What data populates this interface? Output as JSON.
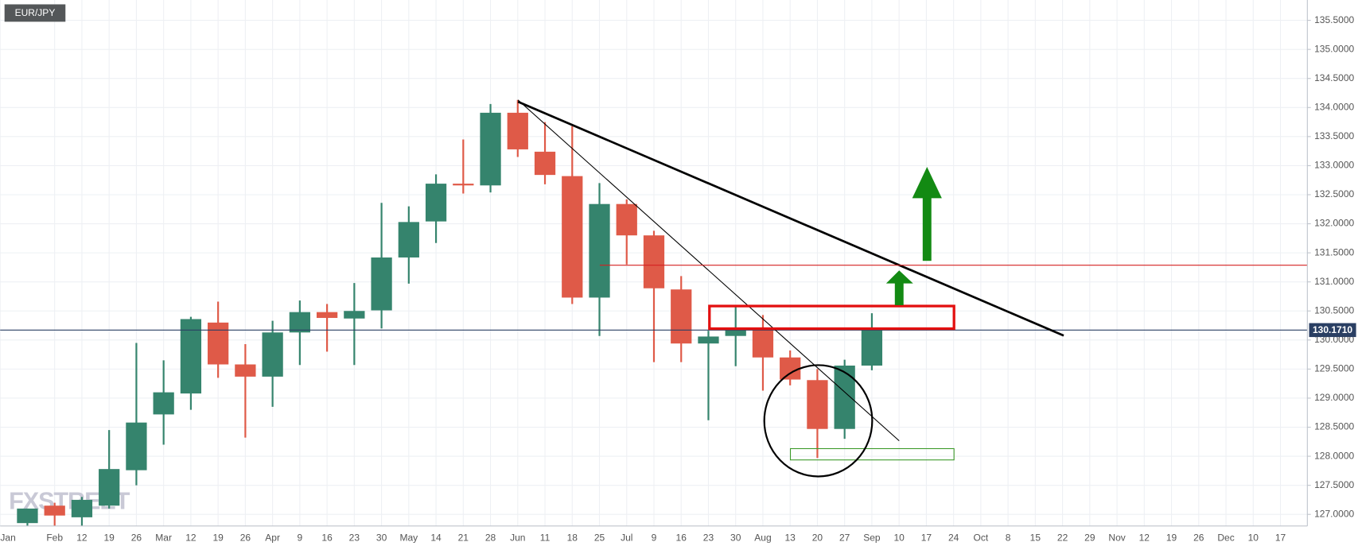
{
  "chart_data": {
    "type": "candlestick",
    "title": "EUR/JPY",
    "watermark": "FXSTREET",
    "categories": [
      "Jan",
      null,
      "Feb",
      "12",
      "19",
      "26",
      "Mar",
      "12",
      "19",
      "26",
      "Apr",
      "9",
      "16",
      "23",
      "30",
      "May",
      "14",
      "21",
      "28",
      "Jun",
      "11",
      "18",
      "25",
      "Jul",
      "9",
      "16",
      "23",
      "30",
      "Aug",
      "13",
      "20",
      "27",
      "Sep",
      "10",
      "17",
      "24",
      "Oct",
      "8",
      "15",
      "22",
      "29",
      "Nov",
      "12",
      "19",
      "26",
      "Dec",
      "10",
      "17"
    ],
    "series": [
      {
        "up_color": "#35846d",
        "down_color": "#df5a48",
        "open": [
          null,
          126.85,
          127.15,
          126.95,
          127.15,
          127.76,
          128.72,
          129.08,
          130.3,
          129.58,
          129.37,
          130.13,
          130.48,
          130.37,
          130.51,
          131.42,
          132.04,
          132.69,
          132.66,
          133.91,
          133.24,
          132.82,
          130.73,
          132.34,
          131.8,
          130.87,
          129.94,
          130.07,
          130.18,
          129.7,
          129.31,
          128.47,
          129.56,
          null,
          null,
          null,
          null,
          null,
          null,
          null,
          null,
          null,
          null,
          null,
          null,
          null,
          null,
          null
        ],
        "high": [
          null,
          127.1,
          127.2,
          127.3,
          128.45,
          129.95,
          129.65,
          130.4,
          130.66,
          129.93,
          130.33,
          130.68,
          130.62,
          130.98,
          132.36,
          132.3,
          132.85,
          133.45,
          134.06,
          134.13,
          133.75,
          133.68,
          132.7,
          132.42,
          131.88,
          131.1,
          130.16,
          130.57,
          130.43,
          129.82,
          129.5,
          129.66,
          130.46,
          null,
          null,
          null,
          null,
          null,
          null,
          null,
          null,
          null,
          null,
          null,
          null,
          null,
          null,
          null
        ],
        "low": [
          null,
          126.8,
          126.8,
          126.8,
          127.1,
          127.5,
          128.2,
          128.8,
          129.35,
          128.32,
          128.85,
          129.57,
          129.8,
          129.57,
          130.2,
          130.97,
          131.67,
          132.52,
          132.54,
          133.15,
          132.68,
          130.62,
          130.07,
          131.3,
          129.62,
          129.62,
          128.62,
          129.55,
          129.13,
          129.22,
          127.97,
          128.3,
          129.48,
          null,
          null,
          null,
          null,
          null,
          null,
          null,
          null,
          null,
          null,
          null,
          null,
          null,
          null,
          null
        ],
        "close": [
          null,
          127.1,
          126.98,
          127.25,
          127.78,
          128.58,
          129.1,
          130.36,
          129.58,
          129.37,
          130.13,
          130.48,
          130.38,
          130.5,
          131.42,
          132.03,
          132.69,
          132.66,
          133.91,
          133.28,
          132.84,
          130.73,
          132.34,
          131.8,
          130.89,
          129.94,
          130.06,
          130.18,
          129.7,
          129.32,
          128.47,
          129.56,
          130.17,
          null,
          null,
          null,
          null,
          null,
          null,
          null,
          null,
          null,
          null,
          null,
          null,
          null,
          null,
          null
        ]
      }
    ],
    "last_price": {
      "value": 130.171,
      "label": "130.1710"
    },
    "last_price_color": "#2a3f63",
    "ylim": [
      126.8,
      135.85
    ],
    "yticks": [
      {
        "value": 127,
        "label": "127.0000"
      },
      {
        "value": 127.5,
        "label": "127.5000"
      },
      {
        "value": 128,
        "label": "128.0000"
      },
      {
        "value": 128.5,
        "label": "128.5000"
      },
      {
        "value": 129,
        "label": "129.0000"
      },
      {
        "value": 129.5,
        "label": "129.5000"
      },
      {
        "value": 130,
        "label": "130.0000"
      },
      {
        "value": 130.5,
        "label": "130.5000"
      },
      {
        "value": 131,
        "label": "131.0000"
      },
      {
        "value": 131.5,
        "label": "131.5000"
      },
      {
        "value": 132,
        "label": "132.0000"
      },
      {
        "value": 132.5,
        "label": "132.5000"
      },
      {
        "value": 133,
        "label": "133.0000"
      },
      {
        "value": 133.5,
        "label": "133.5000"
      },
      {
        "value": 134,
        "label": "134.0000"
      },
      {
        "value": 134.5,
        "label": "134.5000"
      },
      {
        "value": 135,
        "label": "135.0000"
      },
      {
        "value": 135.5,
        "label": "135.5000"
      }
    ],
    "grid": true
  }
}
